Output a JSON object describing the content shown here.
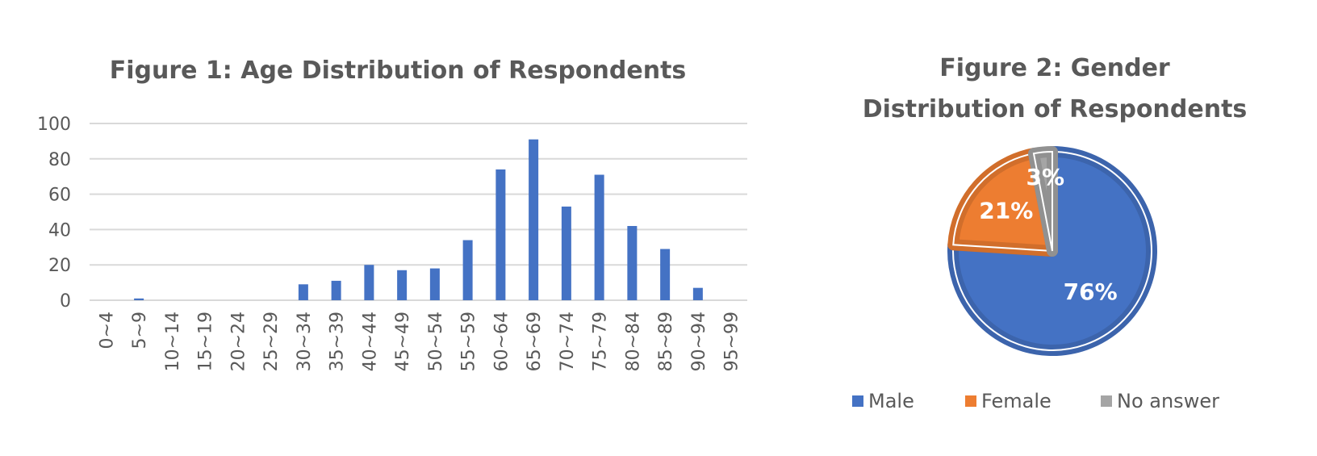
{
  "chart_data": [
    {
      "type": "bar",
      "title": "Figure 1:  Age Distribution of Respondents",
      "categories": [
        "0~4",
        "5~9",
        "10~14",
        "15~19",
        "20~24",
        "25~29",
        "30~34",
        "35~39",
        "40~44",
        "45~49",
        "50~54",
        "55~59",
        "60~64",
        "65~69",
        "70~74",
        "75~79",
        "80~84",
        "85~89",
        "90~94",
        "95~99"
      ],
      "values": [
        0,
        1,
        0,
        0,
        0,
        0,
        9,
        11,
        20,
        17,
        18,
        34,
        74,
        91,
        53,
        71,
        42,
        29,
        7,
        0
      ],
      "yticks": [
        "0",
        "20",
        "40",
        "60",
        "80",
        "100"
      ],
      "ylim": [
        0,
        100
      ],
      "grid": true,
      "color": "#4472C4"
    },
    {
      "type": "pie",
      "title_lines": [
        "Figure 2: Gender",
        "Distribution of Respondents"
      ],
      "slices": [
        {
          "name": "Male",
          "value": 76,
          "label": "76%",
          "color": "#4472C4"
        },
        {
          "name": "Female",
          "value": 21,
          "label": "21%",
          "color": "#ED7D31"
        },
        {
          "name": "No answer",
          "value": 3,
          "label": "3%",
          "color": "#A5A5A5"
        }
      ],
      "legend_position": "bottom"
    }
  ]
}
